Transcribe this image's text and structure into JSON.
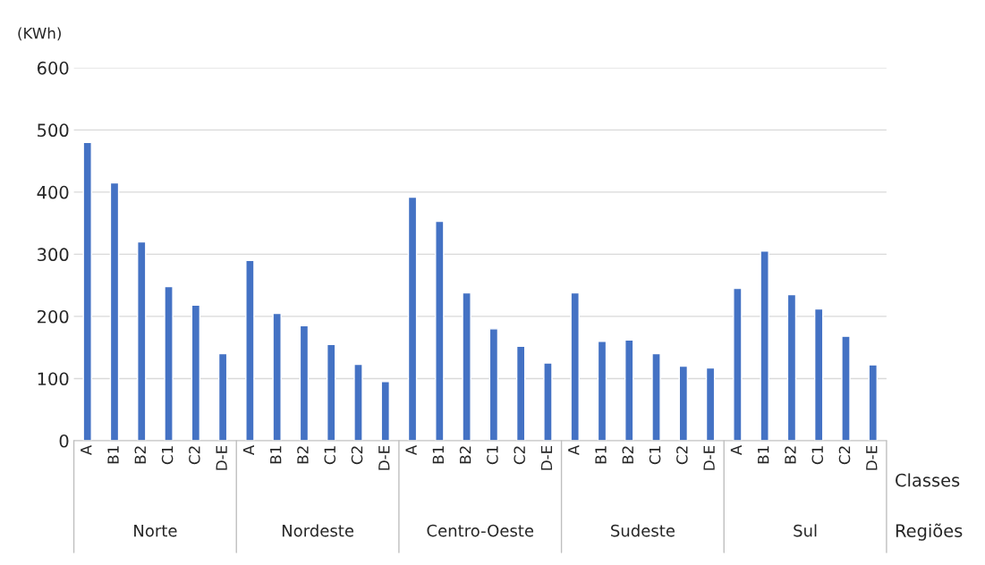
{
  "chart_data": {
    "type": "bar",
    "ylabel": "(KWh)",
    "xlabel": "Classes",
    "categories": [
      "A",
      "B1",
      "B2",
      "C1",
      "C2",
      "D-E",
      "A",
      "B1",
      "B2",
      "C1",
      "C2",
      "D-E",
      "A",
      "B1",
      "B2",
      "C1",
      "C2",
      "D-E",
      "A",
      "B1",
      "B2",
      "C1",
      "C2",
      "D-E",
      "A",
      "B1",
      "B2",
      "C1",
      "C2",
      "D-E"
    ],
    "values": [
      480,
      415,
      320,
      248,
      218,
      140,
      290,
      205,
      185,
      155,
      123,
      95,
      392,
      353,
      238,
      180,
      152,
      125,
      238,
      160,
      162,
      140,
      120,
      117,
      245,
      305,
      235,
      212,
      168,
      122
    ],
    "color": "#4472c4",
    "ylim": [
      0,
      600
    ],
    "yticks": [
      0,
      100,
      200,
      300,
      400,
      500,
      600
    ],
    "grid": "y",
    "annotations": [
      "Norte",
      "Nordeste",
      "Centro-Oeste",
      "Sudeste",
      "Sul",
      "Regiões"
    ]
  }
}
